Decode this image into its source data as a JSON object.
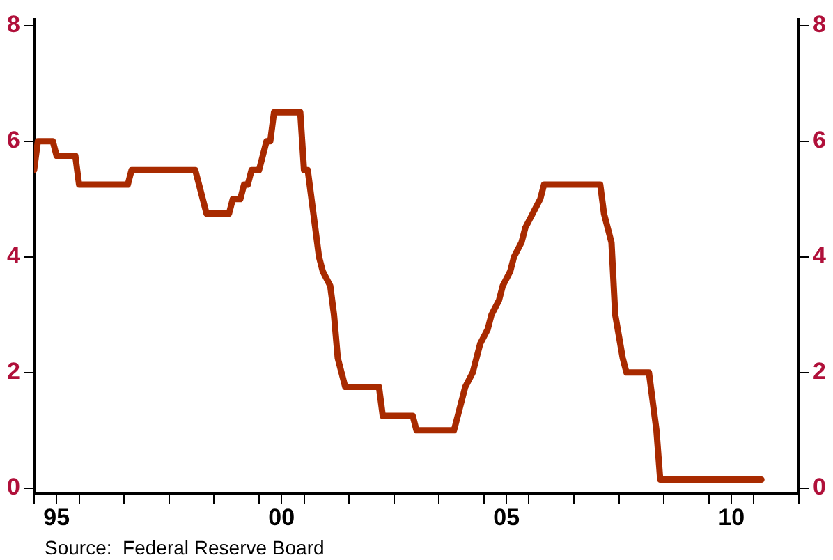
{
  "chart_data": {
    "type": "line",
    "annotations": [
      "Source:  Federal Reserve Board"
    ],
    "series": [
      {
        "color": "#a82a00",
        "x": [
          "1995-01",
          "1995-02",
          "1995-06",
          "1995-07",
          "1995-12",
          "1996-01",
          "1997-02",
          "1997-03",
          "1998-08",
          "1998-10",
          "1998-11",
          "1999-05",
          "1999-06",
          "1999-08",
          "1999-09",
          "1999-10",
          "1999-11",
          "2000-01",
          "2000-02",
          "2000-03",
          "2000-04",
          "2000-05",
          "2000-12",
          "2001-01",
          "2001-02",
          "2001-04",
          "2001-05",
          "2001-06",
          "2001-08",
          "2001-09",
          "2001-10",
          "2001-12",
          "2002-09",
          "2002-10",
          "2003-06",
          "2003-07",
          "2004-05",
          "2004-06",
          "2004-07",
          "2004-08",
          "2004-10",
          "2004-11",
          "2004-12",
          "2005-02",
          "2005-03",
          "2005-05",
          "2005-06",
          "2005-08",
          "2005-09",
          "2005-11",
          "2005-12",
          "2006-02",
          "2006-04",
          "2006-05",
          "2007-08",
          "2007-09",
          "2007-10",
          "2007-11",
          "2007-12",
          "2008-02",
          "2008-03",
          "2008-09",
          "2008-11",
          "2008-12",
          "2011-03"
        ],
        "values": [
          5.5,
          6.0,
          6.0,
          5.75,
          5.75,
          5.25,
          5.25,
          5.5,
          5.5,
          5.0,
          4.75,
          4.75,
          5.0,
          5.0,
          5.25,
          5.25,
          5.5,
          5.5,
          5.75,
          6.0,
          6.0,
          6.5,
          6.5,
          5.5,
          5.5,
          4.5,
          4.0,
          3.75,
          3.5,
          3.0,
          2.25,
          1.75,
          1.75,
          1.25,
          1.25,
          1.0,
          1.0,
          1.25,
          1.5,
          1.75,
          2.0,
          2.25,
          2.5,
          2.75,
          3.0,
          3.25,
          3.5,
          3.75,
          4.0,
          4.25,
          4.5,
          4.75,
          5.0,
          5.25,
          5.25,
          4.75,
          4.5,
          4.25,
          3.0,
          2.25,
          2.0,
          2.0,
          1.0,
          0.15,
          0.15
        ]
      }
    ],
    "xlim": [
      "1995-01",
      "2012-01"
    ],
    "xticks": [
      {
        "value": "1995",
        "label": null
      },
      {
        "value": "1995-07",
        "label": "95"
      },
      {
        "value": "1996",
        "label": null
      },
      {
        "value": "1997",
        "label": null
      },
      {
        "value": "1998",
        "label": null
      },
      {
        "value": "1999",
        "label": null
      },
      {
        "value": "2000",
        "label": null
      },
      {
        "value": "2000-07",
        "label": "00"
      },
      {
        "value": "2001",
        "label": null
      },
      {
        "value": "2002",
        "label": null
      },
      {
        "value": "2003",
        "label": null
      },
      {
        "value": "2004",
        "label": null
      },
      {
        "value": "2005",
        "label": null
      },
      {
        "value": "2005-07",
        "label": "05"
      },
      {
        "value": "2006",
        "label": null
      },
      {
        "value": "2007",
        "label": null
      },
      {
        "value": "2008",
        "label": null
      },
      {
        "value": "2009",
        "label": null
      },
      {
        "value": "2010",
        "label": null
      },
      {
        "value": "2010-07",
        "label": "10"
      },
      {
        "value": "2011",
        "label": null
      },
      {
        "value": "2012",
        "label": null
      }
    ],
    "ylim": [
      -0.1,
      8.1
    ],
    "yticks": [
      0,
      2,
      4,
      6,
      8
    ],
    "y2lim": [
      -0.1,
      8.1
    ],
    "y2ticks": [
      0,
      2,
      4,
      6,
      8
    ],
    "grid": false,
    "legend": false,
    "marker": "none",
    "line_style": "solid"
  }
}
